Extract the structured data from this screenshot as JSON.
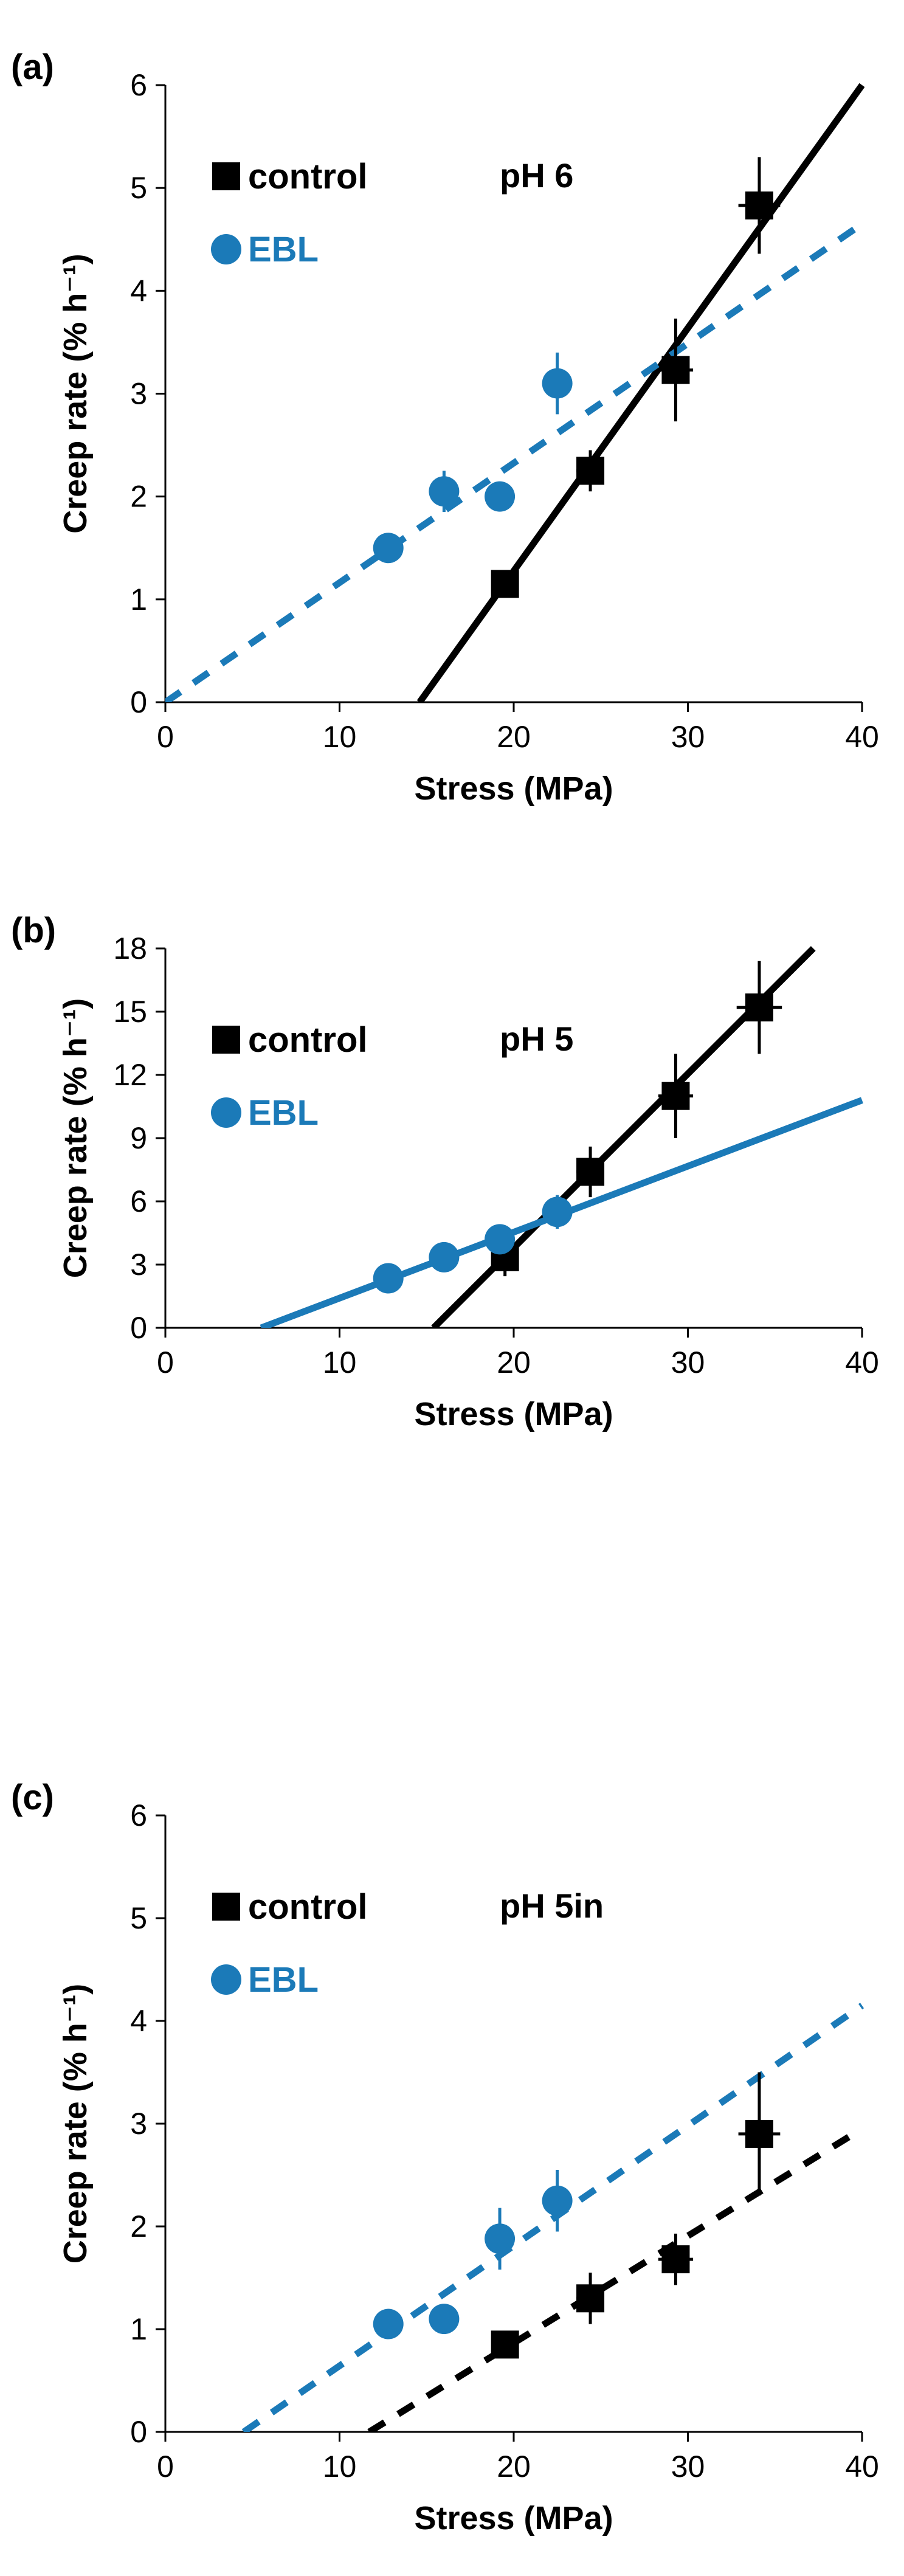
{
  "chart_data": [
    {
      "type": "scatter",
      "panel_label": "(a)",
      "annotation": "pH 6",
      "xlabel": "Stress (MPa)",
      "ylabel": "Creep rate (% h⁻¹)",
      "xlim": [
        0,
        40
      ],
      "ylim": [
        0,
        6
      ],
      "xticks": [
        0,
        10,
        20,
        30,
        40
      ],
      "yticks": [
        0,
        1,
        2,
        3,
        4,
        5,
        6
      ],
      "series": [
        {
          "name": "control",
          "marker": "square",
          "color": "#000000",
          "points": [
            {
              "x": 19.5,
              "y": 1.15,
              "yerr": 0.1,
              "xerr": 0.6
            },
            {
              "x": 24.4,
              "y": 2.25,
              "yerr": 0.2,
              "xerr": 0.8
            },
            {
              "x": 29.3,
              "y": 3.23,
              "yerr": 0.5,
              "xerr": 1.0
            },
            {
              "x": 34.1,
              "y": 4.83,
              "yerr": 0.47,
              "xerr": 1.2
            }
          ],
          "fit": {
            "style": "solid",
            "x": [
              14.6,
              40
            ],
            "y": [
              0,
              6.0
            ]
          }
        },
        {
          "name": "EBL",
          "marker": "circle",
          "color": "#1b7ab8",
          "points": [
            {
              "x": 12.8,
              "y": 1.5,
              "yerr": 0.1
            },
            {
              "x": 16.0,
              "y": 2.05,
              "yerr": 0.2
            },
            {
              "x": 19.2,
              "y": 2.0,
              "yerr": 0.05
            },
            {
              "x": 22.5,
              "y": 3.1,
              "yerr": 0.3
            }
          ],
          "fit": {
            "style": "dashed",
            "x": [
              0,
              40
            ],
            "y": [
              0,
              4.65
            ]
          }
        }
      ]
    },
    {
      "type": "scatter",
      "panel_label": "(b)",
      "annotation": "pH 5",
      "xlabel": "Stress (MPa)",
      "ylabel": "Creep rate (% h⁻¹)",
      "xlim": [
        0,
        40
      ],
      "ylim": [
        0,
        18
      ],
      "xticks": [
        0,
        10,
        20,
        30,
        40
      ],
      "yticks": [
        0,
        3,
        6,
        9,
        12,
        15,
        18
      ],
      "series": [
        {
          "name": "control",
          "marker": "square",
          "color": "#000000",
          "points": [
            {
              "x": 19.5,
              "y": 3.35,
              "yerr": 0.9,
              "xerr": 0.6
            },
            {
              "x": 24.4,
              "y": 7.4,
              "yerr": 1.2,
              "xerr": 0.8
            },
            {
              "x": 29.3,
              "y": 11.0,
              "yerr": 2.0,
              "xerr": 1.0
            },
            {
              "x": 34.1,
              "y": 15.2,
              "yerr": 2.2,
              "xerr": 1.3
            }
          ],
          "fit": {
            "style": "solid",
            "x": [
              15.4,
              37.2
            ],
            "y": [
              0,
              18
            ]
          }
        },
        {
          "name": "EBL",
          "marker": "circle",
          "color": "#1b7ab8",
          "points": [
            {
              "x": 12.8,
              "y": 2.35,
              "yerr": 0.2
            },
            {
              "x": 16.0,
              "y": 3.35,
              "yerr": 0.3
            },
            {
              "x": 19.2,
              "y": 4.2,
              "yerr": 0.3
            },
            {
              "x": 22.5,
              "y": 5.5,
              "yerr": 0.8
            }
          ],
          "fit": {
            "style": "solid",
            "x": [
              5.5,
              40
            ],
            "y": [
              0,
              10.8
            ]
          }
        }
      ]
    },
    {
      "type": "scatter",
      "panel_label": "(c)",
      "annotation": "pH 5in",
      "xlabel": "Stress (MPa)",
      "ylabel": "Creep rate (% h⁻¹)",
      "xlim": [
        0,
        40
      ],
      "ylim": [
        0,
        6
      ],
      "xticks": [
        0,
        10,
        20,
        30,
        40
      ],
      "yticks": [
        0,
        1,
        2,
        3,
        4,
        5,
        6
      ],
      "series": [
        {
          "name": "control",
          "marker": "square",
          "color": "#000000",
          "points": [
            {
              "x": 19.5,
              "y": 0.85,
              "yerr": 0.1,
              "xerr": 0.6
            },
            {
              "x": 24.4,
              "y": 1.3,
              "yerr": 0.25,
              "xerr": 0.8
            },
            {
              "x": 29.3,
              "y": 1.68,
              "yerr": 0.25,
              "xerr": 1.0
            },
            {
              "x": 34.1,
              "y": 2.9,
              "yerr": 0.6,
              "xerr": 1.2
            }
          ],
          "fit": {
            "style": "dashed",
            "x": [
              11.7,
              40
            ],
            "y": [
              0,
              2.95
            ]
          }
        },
        {
          "name": "EBL",
          "marker": "circle",
          "color": "#1b7ab8",
          "points": [
            {
              "x": 12.8,
              "y": 1.05,
              "yerr": 0.05
            },
            {
              "x": 16.0,
              "y": 1.1,
              "yerr": 0.05
            },
            {
              "x": 19.2,
              "y": 1.88,
              "yerr": 0.3
            },
            {
              "x": 22.5,
              "y": 2.25,
              "yerr": 0.3
            }
          ],
          "fit": {
            "style": "dashed",
            "x": [
              4.5,
              40
            ],
            "y": [
              0,
              4.15
            ]
          }
        }
      ]
    }
  ]
}
